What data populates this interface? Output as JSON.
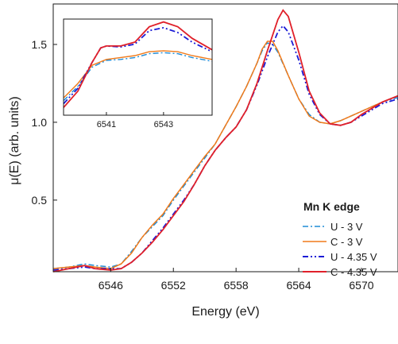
{
  "chart_data": {
    "type": "line",
    "xlabel": "Energy (eV)",
    "ylabel": "μ(E) (arb. units)",
    "xlim": [
      6540.5,
      6573.5
    ],
    "ylim": [
      0.04,
      1.76
    ],
    "x_ticks": [
      6546,
      6552,
      6558,
      6564,
      6570
    ],
    "y_ticks": [
      0.5,
      1.0,
      1.5
    ],
    "x_tick_labels": [
      "6546",
      "6552",
      "6558",
      "6564",
      "6570"
    ],
    "y_tick_labels": [
      "0.5",
      "1.0",
      "1.5"
    ],
    "grid": false,
    "legend": {
      "title": "Mn K edge",
      "placement": "bottom-right"
    },
    "series": [
      {
        "name": "U - 3 V",
        "color": "#1e8bd6",
        "dash": "dashdot",
        "points": [
          [
            6540.5,
            0.06
          ],
          [
            6542,
            0.07
          ],
          [
            6543.5,
            0.09
          ],
          [
            6544.5,
            0.08
          ],
          [
            6546,
            0.07
          ],
          [
            6547,
            0.09
          ],
          [
            6548,
            0.17
          ],
          [
            6549,
            0.26
          ],
          [
            6550,
            0.33
          ],
          [
            6551,
            0.4
          ],
          [
            6552,
            0.5
          ],
          [
            6553,
            0.59
          ],
          [
            6554,
            0.68
          ],
          [
            6555,
            0.77
          ],
          [
            6556,
            0.86
          ],
          [
            6557,
            0.98
          ],
          [
            6558,
            1.1
          ],
          [
            6559,
            1.23
          ],
          [
            6560,
            1.38
          ],
          [
            6560.5,
            1.46
          ],
          [
            6561,
            1.51
          ],
          [
            6561.5,
            1.5
          ],
          [
            6562,
            1.45
          ],
          [
            6563,
            1.3
          ],
          [
            6564,
            1.15
          ],
          [
            6565,
            1.05
          ],
          [
            6566,
            1.0
          ],
          [
            6567,
            0.99
          ],
          [
            6568,
            1.01
          ],
          [
            6569,
            1.04
          ],
          [
            6570,
            1.07
          ],
          [
            6571,
            1.1
          ],
          [
            6572,
            1.13
          ],
          [
            6573.5,
            1.16
          ]
        ]
      },
      {
        "name": "C - 3 V",
        "color": "#f07a1a",
        "dash": "solid",
        "points": [
          [
            6540.5,
            0.06
          ],
          [
            6542,
            0.07
          ],
          [
            6543.5,
            0.08
          ],
          [
            6544.5,
            0.07
          ],
          [
            6546,
            0.06
          ],
          [
            6547,
            0.09
          ],
          [
            6548,
            0.16
          ],
          [
            6549,
            0.26
          ],
          [
            6550,
            0.34
          ],
          [
            6551,
            0.41
          ],
          [
            6552,
            0.51
          ],
          [
            6553,
            0.6
          ],
          [
            6554,
            0.69
          ],
          [
            6555,
            0.78
          ],
          [
            6556,
            0.86
          ],
          [
            6557,
            0.98
          ],
          [
            6558,
            1.1
          ],
          [
            6559,
            1.23
          ],
          [
            6560,
            1.38
          ],
          [
            6560.5,
            1.47
          ],
          [
            6561,
            1.52
          ],
          [
            6561.5,
            1.52
          ],
          [
            6562,
            1.46
          ],
          [
            6563,
            1.3
          ],
          [
            6564,
            1.15
          ],
          [
            6565,
            1.04
          ],
          [
            6566,
            1.0
          ],
          [
            6567,
            0.99
          ],
          [
            6568,
            1.01
          ],
          [
            6569,
            1.04
          ],
          [
            6570,
            1.07
          ],
          [
            6571,
            1.1
          ],
          [
            6572,
            1.13
          ],
          [
            6573.5,
            1.17
          ]
        ]
      },
      {
        "name": "U - 4.35 V",
        "color": "#1b1bd6",
        "dash": "dashdotdot",
        "points": [
          [
            6540.5,
            0.05
          ],
          [
            6542,
            0.06
          ],
          [
            6543.5,
            0.07
          ],
          [
            6544.5,
            0.06
          ],
          [
            6546,
            0.06
          ],
          [
            6547,
            0.06
          ],
          [
            6548,
            0.1
          ],
          [
            6549,
            0.16
          ],
          [
            6550,
            0.24
          ],
          [
            6551,
            0.32
          ],
          [
            6552,
            0.41
          ],
          [
            6553,
            0.5
          ],
          [
            6554,
            0.6
          ],
          [
            6555,
            0.72
          ],
          [
            6556,
            0.82
          ],
          [
            6557,
            0.9
          ],
          [
            6558,
            0.97
          ],
          [
            6559,
            1.08
          ],
          [
            6560,
            1.24
          ],
          [
            6561,
            1.42
          ],
          [
            6562,
            1.58
          ],
          [
            6562.5,
            1.62
          ],
          [
            6563,
            1.58
          ],
          [
            6564,
            1.4
          ],
          [
            6565,
            1.18
          ],
          [
            6566,
            1.05
          ],
          [
            6567,
            0.99
          ],
          [
            6568,
            0.98
          ],
          [
            6569,
            1.0
          ],
          [
            6570,
            1.04
          ],
          [
            6571,
            1.08
          ],
          [
            6572,
            1.12
          ],
          [
            6573.5,
            1.15
          ]
        ]
      },
      {
        "name": "C - 4.35 V",
        "color": "#e0202a",
        "dash": "solid",
        "points": [
          [
            6540.5,
            0.04
          ],
          [
            6542,
            0.06
          ],
          [
            6543.5,
            0.08
          ],
          [
            6544.5,
            0.06
          ],
          [
            6546,
            0.05
          ],
          [
            6547,
            0.06
          ],
          [
            6548,
            0.1
          ],
          [
            6549,
            0.16
          ],
          [
            6550,
            0.23
          ],
          [
            6551,
            0.31
          ],
          [
            6552,
            0.4
          ],
          [
            6553,
            0.49
          ],
          [
            6554,
            0.6
          ],
          [
            6555,
            0.72
          ],
          [
            6556,
            0.82
          ],
          [
            6557,
            0.9
          ],
          [
            6558,
            0.97
          ],
          [
            6559,
            1.08
          ],
          [
            6560,
            1.25
          ],
          [
            6561,
            1.46
          ],
          [
            6562,
            1.66
          ],
          [
            6562.5,
            1.72
          ],
          [
            6563,
            1.68
          ],
          [
            6564,
            1.45
          ],
          [
            6565,
            1.2
          ],
          [
            6566,
            1.06
          ],
          [
            6567,
            0.99
          ],
          [
            6568,
            0.98
          ],
          [
            6569,
            1.0
          ],
          [
            6570,
            1.05
          ],
          [
            6571,
            1.09
          ],
          [
            6572,
            1.13
          ],
          [
            6573.5,
            1.17
          ]
        ]
      }
    ],
    "inset": {
      "xlim": [
        6539.5,
        6544.7
      ],
      "x_ticks": [
        6541,
        6543
      ],
      "x_tick_labels": [
        "6541",
        "6543"
      ],
      "ylim": [
        0,
        1
      ],
      "series": [
        {
          "name": "U - 3 V",
          "points": [
            [
              6539.5,
              0.15
            ],
            [
              6540,
              0.3
            ],
            [
              6540.5,
              0.5
            ],
            [
              6541,
              0.57
            ],
            [
              6541.5,
              0.58
            ],
            [
              6542,
              0.6
            ],
            [
              6542.5,
              0.64
            ],
            [
              6543,
              0.65
            ],
            [
              6543.5,
              0.64
            ],
            [
              6544,
              0.6
            ],
            [
              6544.7,
              0.56
            ]
          ]
        },
        {
          "name": "C - 3 V",
          "points": [
            [
              6539.5,
              0.18
            ],
            [
              6540,
              0.33
            ],
            [
              6540.5,
              0.52
            ],
            [
              6541,
              0.58
            ],
            [
              6541.5,
              0.6
            ],
            [
              6542,
              0.62
            ],
            [
              6542.5,
              0.66
            ],
            [
              6543,
              0.67
            ],
            [
              6543.5,
              0.66
            ],
            [
              6544,
              0.62
            ],
            [
              6544.7,
              0.58
            ]
          ]
        },
        {
          "name": "U - 4.35 V",
          "points": [
            [
              6539.5,
              0.12
            ],
            [
              6540,
              0.28
            ],
            [
              6540.5,
              0.55
            ],
            [
              6540.8,
              0.7
            ],
            [
              6541,
              0.72
            ],
            [
              6541.5,
              0.71
            ],
            [
              6542,
              0.74
            ],
            [
              6542.5,
              0.88
            ],
            [
              6543,
              0.91
            ],
            [
              6543.5,
              0.86
            ],
            [
              6544,
              0.76
            ],
            [
              6544.7,
              0.66
            ]
          ]
        },
        {
          "name": "C - 4.35 V",
          "points": [
            [
              6539.5,
              0.08
            ],
            [
              6540,
              0.25
            ],
            [
              6540.5,
              0.55
            ],
            [
              6540.8,
              0.7
            ],
            [
              6541,
              0.72
            ],
            [
              6541.5,
              0.72
            ],
            [
              6542,
              0.76
            ],
            [
              6542.5,
              0.92
            ],
            [
              6543,
              0.97
            ],
            [
              6543.5,
              0.92
            ],
            [
              6544,
              0.8
            ],
            [
              6544.7,
              0.68
            ]
          ]
        }
      ]
    }
  }
}
